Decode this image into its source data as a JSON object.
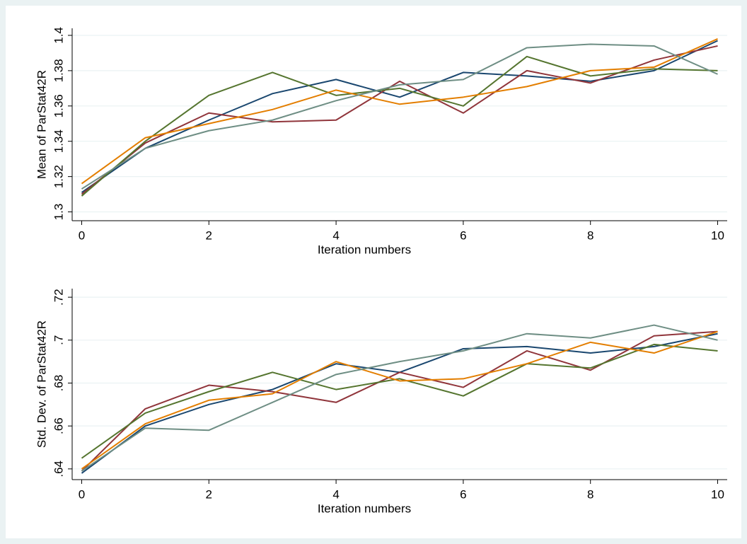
{
  "chart_data": [
    {
      "type": "line",
      "x": [
        0,
        1,
        2,
        3,
        4,
        5,
        6,
        7,
        8,
        9,
        10
      ],
      "xlim": [
        -0.15,
        10.15
      ],
      "xticks": [
        0,
        2,
        4,
        6,
        8,
        10
      ],
      "ylim": [
        1.295,
        1.404
      ],
      "yticks": [
        1.3,
        1.32,
        1.34,
        1.36,
        1.38,
        1.4
      ],
      "x_label": "Iteration numbers",
      "y_label": "Mean of ParStat42R",
      "grid": true,
      "series": [
        {
          "color": "#1a476f",
          "values": [
            1.311,
            1.336,
            1.352,
            1.367,
            1.375,
            1.365,
            1.379,
            1.377,
            1.374,
            1.38,
            1.397
          ]
        },
        {
          "color": "#90353b",
          "values": [
            1.31,
            1.339,
            1.356,
            1.351,
            1.352,
            1.374,
            1.356,
            1.38,
            1.373,
            1.386,
            1.394
          ]
        },
        {
          "color": "#55752f",
          "values": [
            1.309,
            1.34,
            1.366,
            1.379,
            1.366,
            1.37,
            1.36,
            1.388,
            1.377,
            1.381,
            1.38
          ]
        },
        {
          "color": "#e37e00",
          "values": [
            1.316,
            1.342,
            1.35,
            1.358,
            1.369,
            1.361,
            1.365,
            1.371,
            1.38,
            1.382,
            1.398
          ]
        },
        {
          "color": "#6e8e84",
          "values": [
            1.313,
            1.336,
            1.346,
            1.352,
            1.363,
            1.372,
            1.375,
            1.393,
            1.395,
            1.394,
            1.378
          ]
        }
      ]
    },
    {
      "type": "line",
      "x": [
        0,
        1,
        2,
        3,
        4,
        5,
        6,
        7,
        8,
        9,
        10
      ],
      "xlim": [
        -0.15,
        10.15
      ],
      "xticks": [
        0,
        2,
        4,
        6,
        8,
        10
      ],
      "ylim": [
        0.635,
        0.724
      ],
      "yticks": [
        {
          "value": 0.64,
          "label": ".64"
        },
        {
          "value": 0.66,
          "label": ".66"
        },
        {
          "value": 0.68,
          "label": ".68"
        },
        {
          "value": 0.7,
          "label": ".7"
        },
        {
          "value": 0.72,
          "label": ".72"
        }
      ],
      "x_label": "Iteration numbers",
      "y_label": "Std. Dev. of ParStat42R",
      "grid": true,
      "series": [
        {
          "color": "#1a476f",
          "values": [
            0.638,
            0.66,
            0.67,
            0.677,
            0.689,
            0.685,
            0.696,
            0.697,
            0.694,
            0.697,
            0.703
          ]
        },
        {
          "color": "#90353b",
          "values": [
            0.639,
            0.668,
            0.679,
            0.676,
            0.671,
            0.685,
            0.678,
            0.695,
            0.686,
            0.702,
            0.704
          ]
        },
        {
          "color": "#55752f",
          "values": [
            0.645,
            0.666,
            0.676,
            0.685,
            0.677,
            0.682,
            0.674,
            0.689,
            0.687,
            0.698,
            0.695
          ]
        },
        {
          "color": "#e37e00",
          "values": [
            0.64,
            0.661,
            0.672,
            0.675,
            0.69,
            0.681,
            0.682,
            0.689,
            0.699,
            0.694,
            0.704
          ]
        },
        {
          "color": "#6e8e84",
          "values": [
            0.639,
            0.659,
            0.658,
            0.671,
            0.684,
            0.69,
            0.695,
            0.703,
            0.701,
            0.707,
            0.7
          ]
        }
      ]
    }
  ]
}
